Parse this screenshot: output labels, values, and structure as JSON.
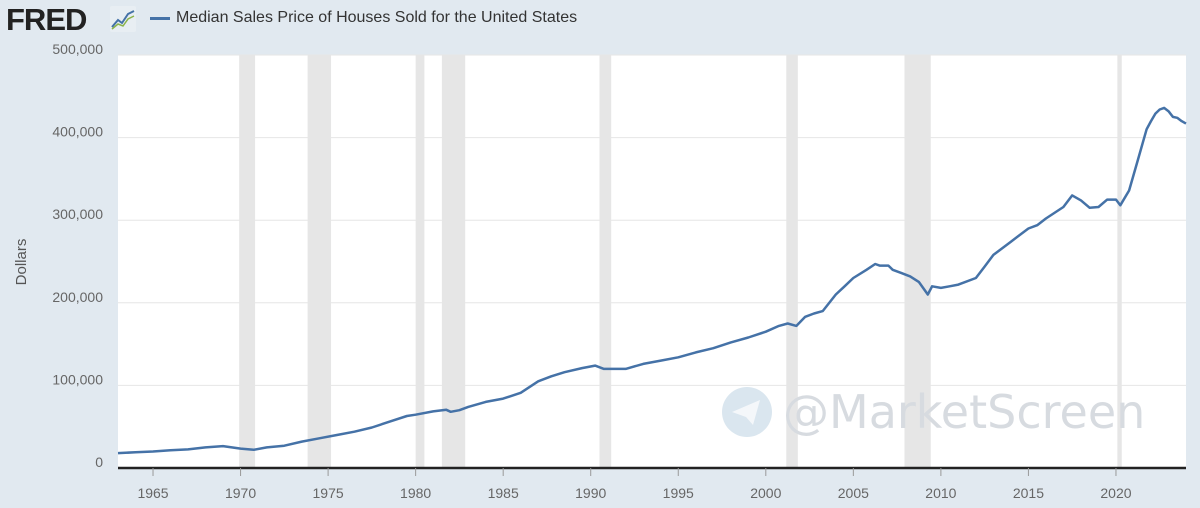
{
  "header": {
    "logo_text": "FRED",
    "logo_icon": "line-graph-icon",
    "legend_label": "Median Sales Price of Houses Sold for the United States",
    "legend_color": "#4572a7"
  },
  "watermark": {
    "text": "@MarketScreen",
    "icon": "telegram-icon"
  },
  "chart_data": {
    "type": "line",
    "title": "Median Sales Price of Houses Sold for the United States",
    "ylabel": "Dollars",
    "xlabel": "",
    "xlim": [
      1963.0,
      2024.0
    ],
    "ylim": [
      0,
      500000
    ],
    "y_ticks": [
      0,
      100000,
      200000,
      300000,
      400000,
      500000
    ],
    "y_tick_labels": [
      "0",
      "100,000",
      "200,000",
      "300,000",
      "400,000",
      "500,000"
    ],
    "x_ticks": [
      1965,
      1970,
      1975,
      1980,
      1985,
      1990,
      1995,
      2000,
      2005,
      2010,
      2015,
      2020
    ],
    "x_tick_labels": [
      "1965",
      "1970",
      "1975",
      "1980",
      "1985",
      "1990",
      "1995",
      "2000",
      "2005",
      "2010",
      "2015",
      "2020"
    ],
    "grid": "horizontal",
    "legend": "top-left",
    "recessions": [
      [
        1969.92,
        1970.83
      ],
      [
        1973.83,
        1975.17
      ],
      [
        1980.0,
        1980.5
      ],
      [
        1981.5,
        1982.83
      ],
      [
        1990.5,
        1991.17
      ],
      [
        2001.17,
        2001.83
      ],
      [
        2007.92,
        2009.42
      ],
      [
        2020.08,
        2020.33
      ]
    ],
    "series": [
      {
        "name": "Median Sales Price of Houses Sold for the United States",
        "color": "#4572a7",
        "x": [
          1963.0,
          1964.0,
          1965.0,
          1966.0,
          1967.0,
          1968.0,
          1969.0,
          1970.0,
          1970.75,
          1971.5,
          1972.5,
          1973.5,
          1974.5,
          1975.5,
          1976.5,
          1977.5,
          1978.5,
          1979.5,
          1980.0,
          1981.0,
          1981.75,
          1982.0,
          1982.5,
          1983.0,
          1984.0,
          1985.0,
          1986.0,
          1987.0,
          1987.75,
          1988.5,
          1989.5,
          1990.25,
          1990.75,
          1991.0,
          1992.0,
          1993.0,
          1994.0,
          1995.0,
          1996.0,
          1997.0,
          1998.0,
          1999.0,
          2000.0,
          2000.75,
          2001.25,
          2001.75,
          2002.25,
          2002.75,
          2003.25,
          2004.0,
          2004.5,
          2005.0,
          2005.75,
          2006.25,
          2006.5,
          2007.0,
          2007.25,
          2007.75,
          2008.25,
          2008.75,
          2009.25,
          2009.5,
          2010.0,
          2010.5,
          2011.0,
          2012.0,
          2012.5,
          2013.0,
          2014.0,
          2015.0,
          2015.5,
          2016.0,
          2017.0,
          2017.5,
          2017.75,
          2018.0,
          2018.5,
          2019.0,
          2019.5,
          2020.0,
          2020.25,
          2020.75,
          2021.25,
          2021.75,
          2022.0,
          2022.25,
          2022.5,
          2022.75,
          2023.0,
          2023.25,
          2023.5,
          2023.75,
          2024.0
        ],
        "values": [
          18000,
          19000,
          20000,
          21500,
          22500,
          25000,
          26500,
          23500,
          22000,
          25000,
          27000,
          32000,
          36000,
          40000,
          44000,
          49000,
          56000,
          63000,
          64500,
          68500,
          70500,
          68000,
          70000,
          74000,
          80000,
          84000,
          91000,
          105000,
          111000,
          116000,
          121000,
          124000,
          120000,
          120000,
          120000,
          126000,
          130000,
          134000,
          140000,
          145000,
          152000,
          158000,
          165000,
          172000,
          175000,
          172000,
          183000,
          187000,
          190000,
          210000,
          220000,
          230000,
          240000,
          247000,
          245000,
          245000,
          240000,
          236000,
          232000,
          225000,
          210000,
          220000,
          218000,
          220000,
          222000,
          230000,
          244000,
          258000,
          274000,
          290000,
          294000,
          302000,
          316000,
          330000,
          327000,
          324000,
          315000,
          316000,
          325000,
          325000,
          318000,
          336000,
          373000,
          410000,
          420000,
          429000,
          434000,
          436000,
          432000,
          425000,
          424000,
          420000,
          417000
        ]
      }
    ]
  }
}
